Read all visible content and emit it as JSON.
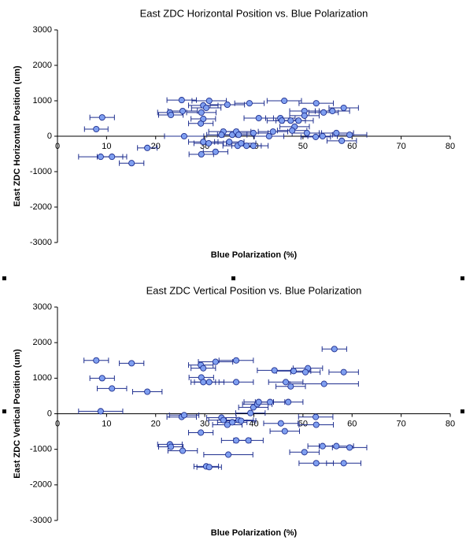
{
  "chart_data": [
    {
      "type": "scatter",
      "title": "East ZDC Horizontal Position vs. Blue Polarization",
      "x_label": "Blue Polarization  (%)",
      "y_label": "East ZDC Horizontal Position  (um)",
      "x": [
        7.9,
        9.1,
        8.8,
        11.1,
        15.1,
        18.3,
        25.3,
        30.9,
        22.9,
        23.1,
        25.5,
        29.3,
        29.7,
        30.3,
        34.6,
        39.1,
        46.2,
        52.7,
        58.3,
        50.3,
        50.3,
        54.2,
        56.0,
        45.4,
        41.0,
        29.2,
        29.7,
        48.3,
        49.1,
        47.5,
        45.7,
        47.8,
        25.8,
        29.7,
        30.8,
        33.8,
        33.4,
        35.6,
        36.4,
        36.9,
        36.7,
        37.4,
        38.5,
        39.9,
        39.9,
        43.1,
        43.9,
        52.6,
        50.8,
        56.8,
        59.5,
        57.9,
        54.0,
        29.3,
        32.2,
        35.0
      ],
      "values": [
        200,
        530,
        -580,
        -580,
        -760,
        -330,
        1020,
        1000,
        670,
        600,
        710,
        670,
        870,
        800,
        890,
        930,
        1000,
        930,
        800,
        710,
        580,
        670,
        710,
        510,
        510,
        360,
        490,
        270,
        440,
        440,
        440,
        160,
        0,
        -160,
        -200,
        130,
        40,
        40,
        130,
        40,
        -270,
        -200,
        -270,
        -270,
        90,
        0,
        130,
        -20,
        90,
        90,
        40,
        -130,
        0,
        -510,
        -440,
        -160
      ],
      "x_errors": [
        2.4,
        2.5,
        4.5,
        3,
        2.5,
        2,
        3,
        3.5,
        2.5,
        2.5,
        3,
        3,
        3,
        3,
        3.5,
        3,
        3.5,
        3.5,
        3,
        3,
        3,
        3,
        3.5,
        3,
        3,
        2.5,
        2.5,
        3,
        3,
        3,
        3,
        3,
        4,
        3,
        3,
        3,
        3,
        3,
        3,
        3,
        3,
        3,
        3,
        3,
        3,
        3,
        3,
        3,
        3,
        3.5,
        3.5,
        3,
        3,
        2.5,
        2.5,
        3
      ],
      "xlim": [
        0,
        80
      ],
      "ylim": [
        -3000,
        3000
      ],
      "xticks": [
        0,
        10,
        20,
        30,
        40,
        50,
        60,
        70,
        80
      ],
      "yticks": [
        -3000,
        -2000,
        -1000,
        0,
        1000,
        2000,
        3000
      ],
      "color": "#7f9ff0",
      "edge_color": "#1f2f8f"
    },
    {
      "type": "scatter",
      "title": "East ZDC Vertical Position vs. Blue Polarization",
      "x_label": "Blue Polarization  (%)",
      "y_label": "East ZDC Vertical Position  (um)",
      "x": [
        7.9,
        15.1,
        9.1,
        11.1,
        18.3,
        8.8,
        25.3,
        25.8,
        22.9,
        23.1,
        25.5,
        29.2,
        29.2,
        29.7,
        32.2,
        36.4,
        29.3,
        29.7,
        30.9,
        36.4,
        44.2,
        48.1,
        51.0,
        50.5,
        58.3,
        56.4,
        46.5,
        47.5,
        54.3,
        33.4,
        33.8,
        34.6,
        35.6,
        36.9,
        37.4,
        34.8,
        36.4,
        38.9,
        39.9,
        39.3,
        40.7,
        41.0,
        43.3,
        47.0,
        45.5,
        52.6,
        52.7,
        46.3,
        50.3,
        54.0,
        56.8,
        59.5,
        52.7,
        58.3,
        30.3,
        30.9
      ],
      "values": [
        1500,
        1420,
        1000,
        710,
        620,
        70,
        -90,
        -40,
        -860,
        -930,
        -1040,
        -530,
        1370,
        1280,
        1460,
        1500,
        1020,
        890,
        890,
        890,
        1220,
        1200,
        1280,
        1170,
        1170,
        1820,
        890,
        770,
        840,
        -110,
        -180,
        -310,
        -240,
        -180,
        -200,
        -1150,
        -750,
        -750,
        180,
        20,
        270,
        330,
        330,
        330,
        -270,
        -90,
        -310,
        -490,
        -1080,
        -910,
        -910,
        -950,
        -1390,
        -1390,
        -1480,
        -1500
      ],
      "x_errors": [
        2.5,
        2.5,
        2.5,
        3,
        3,
        4.5,
        3,
        3,
        2.5,
        2.5,
        3,
        2.5,
        2.5,
        2.5,
        3.5,
        3.5,
        2.5,
        2.5,
        3,
        3.5,
        3.5,
        3.5,
        3,
        3,
        3,
        2.5,
        3.5,
        3,
        7,
        3,
        3,
        3,
        3,
        3,
        3,
        5,
        3,
        3,
        3,
        3,
        3,
        3,
        3,
        3,
        3.5,
        3.5,
        3.5,
        3,
        3,
        3,
        3.5,
        3.5,
        3.5,
        3.5,
        2.5,
        2.5
      ],
      "xlim": [
        0,
        80
      ],
      "ylim": [
        -3000,
        3000
      ],
      "xticks": [
        0,
        10,
        20,
        30,
        40,
        50,
        60,
        70,
        80
      ],
      "yticks": [
        -3000,
        -2000,
        -1000,
        0,
        1000,
        2000,
        3000
      ],
      "color": "#7f9ff0",
      "edge_color": "#1f2f8f"
    }
  ]
}
